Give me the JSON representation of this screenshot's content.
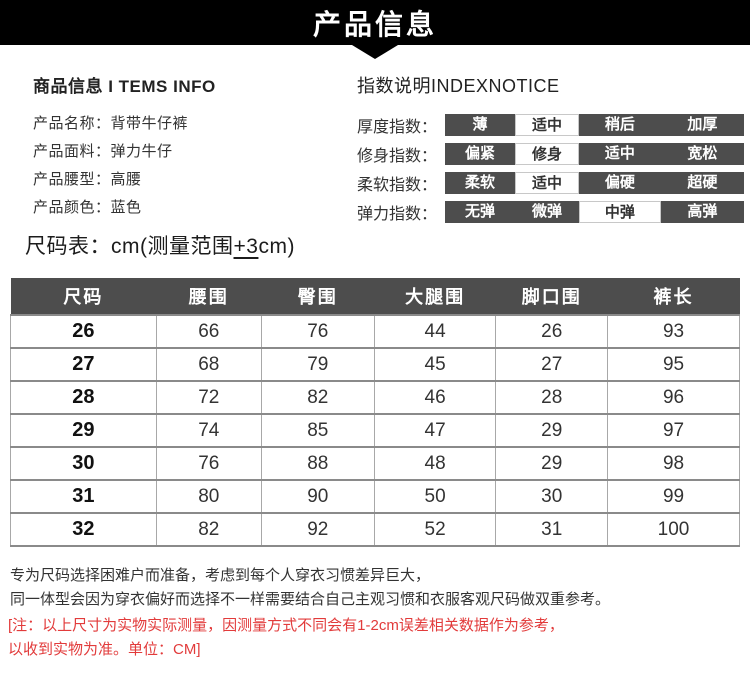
{
  "banner": {
    "title": "产品信息"
  },
  "items_info": {
    "heading": "商品信息 I TEMS INFO",
    "rows": [
      {
        "label": "产品名称：",
        "value": "背带牛仔裤"
      },
      {
        "label": "产品面料：",
        "value": "弹力牛仔"
      },
      {
        "label": "产品腰型：",
        "value": "高腰"
      },
      {
        "label": "产品颜色：",
        "value": "蓝色"
      }
    ]
  },
  "index_notice": {
    "heading": "指数说明INDEXNOTICE",
    "rows": [
      {
        "label": "厚度指数：",
        "cells": [
          {
            "text": "薄",
            "selected": false
          },
          {
            "text": "适中",
            "selected": true
          },
          {
            "text": "稍后",
            "selected": false
          },
          {
            "text": "加厚",
            "selected": false
          }
        ]
      },
      {
        "label": "修身指数：",
        "cells": [
          {
            "text": "偏紧",
            "selected": false
          },
          {
            "text": "修身",
            "selected": true
          },
          {
            "text": "适中",
            "selected": false
          },
          {
            "text": "宽松",
            "selected": false
          }
        ]
      },
      {
        "label": "柔软指数：",
        "cells": [
          {
            "text": "柔软",
            "selected": false
          },
          {
            "text": "适中",
            "selected": true
          },
          {
            "text": "偏硬",
            "selected": false
          },
          {
            "text": "超硬",
            "selected": false
          }
        ]
      },
      {
        "label": "弹力指数：",
        "cells": [
          {
            "text": "无弹",
            "selected": false
          },
          {
            "text": "微弹",
            "selected": false
          },
          {
            "text": "中弹",
            "selected": true
          },
          {
            "text": "高弹",
            "selected": false
          }
        ]
      }
    ]
  },
  "size_table": {
    "title_prefix": "尺码表：cm(测量范围",
    "title_underlined": "+3",
    "title_suffix": "cm)",
    "columns": [
      "尺码",
      "腰围",
      "臀围",
      "大腿围",
      "脚口围",
      "裤长"
    ],
    "column_widths_pct": [
      20,
      14.4,
      15.5,
      16.7,
      15.3,
      18.1
    ],
    "rows": [
      [
        "26",
        "66",
        "76",
        "44",
        "26",
        "93"
      ],
      [
        "27",
        "68",
        "79",
        "45",
        "27",
        "95"
      ],
      [
        "28",
        "72",
        "82",
        "46",
        "28",
        "96"
      ],
      [
        "29",
        "74",
        "85",
        "47",
        "29",
        "97"
      ],
      [
        "30",
        "76",
        "88",
        "48",
        "29",
        "98"
      ],
      [
        "31",
        "80",
        "90",
        "50",
        "30",
        "99"
      ],
      [
        "32",
        "82",
        "92",
        "52",
        "31",
        "100"
      ]
    ]
  },
  "notes": {
    "black_lines": [
      "专为尺码选择困难户而准备，考虑到每个人穿衣习惯差异巨大，",
      "同一体型会因为穿衣偏好而选择不一样需要结合自己主观习惯和衣服客观尺码做双重参考。"
    ],
    "red_lines": [
      "[注：以上尺寸为实物实际测量，因测量方式不同会有1-2cm误差相关数据作为参考，",
      "以收到实物为准。单位：CM]"
    ]
  },
  "colors": {
    "banner_bg": "#000000",
    "index_dark_cell": "#4d4d4d",
    "table_header_bg": "#4d4d4d",
    "note_red": "#e23b3b"
  }
}
